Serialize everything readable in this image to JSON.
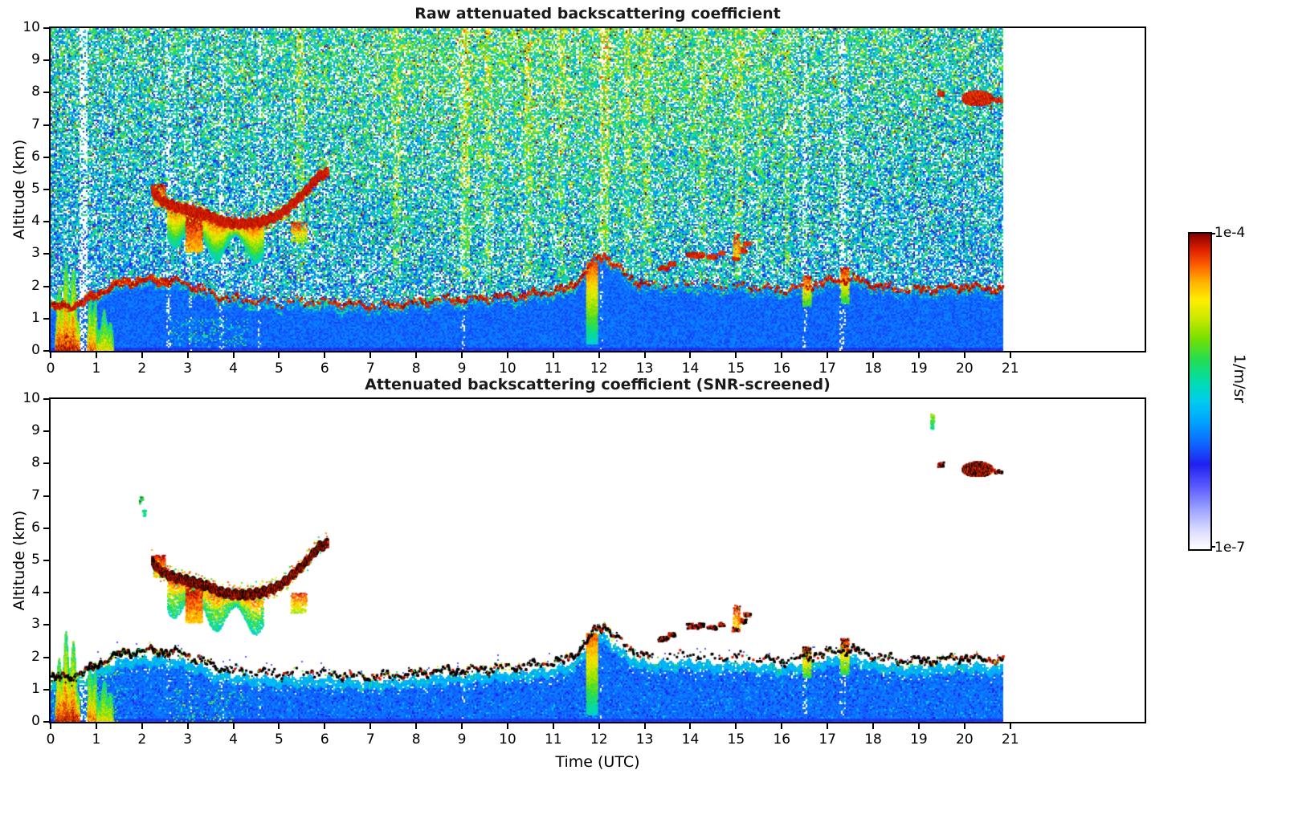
{
  "figure": {
    "panels": [
      {
        "title": "Raw attenuated backscattering coefficient",
        "ylabel": "Altitude (km)",
        "xticks": [
          0,
          1,
          2,
          3,
          4,
          5,
          6,
          7,
          8,
          9,
          10,
          11,
          12,
          13,
          14,
          15,
          16,
          17,
          18,
          19,
          20,
          21
        ],
        "yticks": [
          0,
          1,
          2,
          3,
          4,
          5,
          6,
          7,
          8,
          9,
          10
        ]
      },
      {
        "title": "Attenuated backscattering coefficient (SNR-screened)",
        "ylabel": "Altitude (km)",
        "xlabel": "Time (UTC)",
        "xticks": [
          0,
          1,
          2,
          3,
          4,
          5,
          6,
          7,
          8,
          9,
          10,
          11,
          12,
          13,
          14,
          15,
          16,
          17,
          18,
          19,
          20,
          21
        ],
        "yticks": [
          0,
          1,
          2,
          3,
          4,
          5,
          6,
          7,
          8,
          9,
          10
        ]
      }
    ],
    "colorbar": {
      "top_label": "1e-4",
      "bottom_label": "1e-7",
      "unit": "1/m/sr"
    }
  },
  "chart_data": {
    "type": "heatmap",
    "x_axis": {
      "label": "Time (UTC)",
      "range": [
        0,
        23.94
      ],
      "data_range": [
        0,
        20.83
      ],
      "ticks": [
        0,
        1,
        2,
        3,
        4,
        5,
        6,
        7,
        8,
        9,
        10,
        11,
        12,
        13,
        14,
        15,
        16,
        17,
        18,
        19,
        20,
        21
      ]
    },
    "y_axis": {
      "label": "Altitude (km)",
      "range": [
        0,
        10
      ],
      "ticks": [
        0,
        1,
        2,
        3,
        4,
        5,
        6,
        7,
        8,
        9,
        10
      ]
    },
    "color_axis": {
      "scale": "log",
      "min": 1e-07,
      "max": 0.0001,
      "unit": "1/m/sr"
    },
    "colormap": [
      [
        0,
        "#ffffff"
      ],
      [
        0.06,
        "#dcdcff"
      ],
      [
        0.13,
        "#9aa0ff"
      ],
      [
        0.2,
        "#5a5aff"
      ],
      [
        0.27,
        "#2020f0"
      ],
      [
        0.33,
        "#1060ff"
      ],
      [
        0.4,
        "#00a0ff"
      ],
      [
        0.47,
        "#00ccee"
      ],
      [
        0.53,
        "#00ddb0"
      ],
      [
        0.6,
        "#22dd55"
      ],
      [
        0.67,
        "#77e000"
      ],
      [
        0.73,
        "#c8e800"
      ],
      [
        0.79,
        "#ffee00"
      ],
      [
        0.85,
        "#ffb000"
      ],
      [
        0.9,
        "#ff6000"
      ],
      [
        0.95,
        "#e02000"
      ],
      [
        1,
        "#870000"
      ]
    ],
    "boundary_layer_track": [
      [
        0,
        1.35
      ],
      [
        0.4,
        1.4
      ],
      [
        0.8,
        1.6
      ],
      [
        1.2,
        1.95
      ],
      [
        1.6,
        2.15
      ],
      [
        2,
        2.2
      ],
      [
        2.4,
        2.2
      ],
      [
        2.8,
        2.15
      ],
      [
        3.2,
        1.95
      ],
      [
        3.6,
        1.7
      ],
      [
        4,
        1.6
      ],
      [
        4.5,
        1.55
      ],
      [
        5,
        1.5
      ],
      [
        5.5,
        1.55
      ],
      [
        6,
        1.5
      ],
      [
        6.5,
        1.45
      ],
      [
        7,
        1.4
      ],
      [
        7.5,
        1.45
      ],
      [
        8,
        1.5
      ],
      [
        8.5,
        1.6
      ],
      [
        9,
        1.6
      ],
      [
        9.5,
        1.65
      ],
      [
        10,
        1.7
      ],
      [
        10.5,
        1.75
      ],
      [
        11,
        1.85
      ],
      [
        11.3,
        1.95
      ],
      [
        11.6,
        2.3
      ],
      [
        11.9,
        2.85
      ],
      [
        12.1,
        3.0
      ],
      [
        12.3,
        2.7
      ],
      [
        12.6,
        2.3
      ],
      [
        13,
        2.05
      ],
      [
        13.5,
        2.05
      ],
      [
        14,
        2.1
      ],
      [
        14.5,
        2.0
      ],
      [
        15,
        2.05
      ],
      [
        15.5,
        1.95
      ],
      [
        16,
        1.9
      ],
      [
        16.5,
        2.0
      ],
      [
        17,
        2.15
      ],
      [
        17.5,
        2.25
      ],
      [
        18,
        2.05
      ],
      [
        18.5,
        1.9
      ],
      [
        19,
        1.9
      ],
      [
        19.5,
        1.95
      ],
      [
        20,
        2.0
      ],
      [
        20.4,
        1.95
      ],
      [
        20.83,
        1.9
      ]
    ],
    "cloud_base_track": [
      [
        2.2,
        5.0
      ],
      [
        2.35,
        4.75
      ],
      [
        2.5,
        4.62
      ],
      [
        2.7,
        4.5
      ],
      [
        2.95,
        4.42
      ],
      [
        3.2,
        4.32
      ],
      [
        3.45,
        4.22
      ],
      [
        3.7,
        4.05
      ],
      [
        3.95,
        3.98
      ],
      [
        4.2,
        3.97
      ],
      [
        4.45,
        4.0
      ],
      [
        4.7,
        4.08
      ],
      [
        4.95,
        4.22
      ],
      [
        5.15,
        4.42
      ],
      [
        5.35,
        4.68
      ],
      [
        5.55,
        4.95
      ],
      [
        5.7,
        5.2
      ],
      [
        5.85,
        5.45
      ],
      [
        6.05,
        5.55
      ]
    ],
    "bl_line_segments": [
      [
        0,
        2.6,
        0.95
      ],
      [
        2.6,
        3.3,
        0.6
      ],
      [
        3.3,
        3.9,
        0.45
      ],
      [
        3.9,
        6.2,
        0.22
      ],
      [
        6.2,
        7.2,
        0.35
      ],
      [
        7.2,
        9.8,
        0.45
      ],
      [
        9.8,
        11.3,
        0.5
      ],
      [
        11.3,
        12.45,
        0.75
      ],
      [
        12.45,
        13.2,
        0.3
      ],
      [
        13.2,
        15.5,
        0.12
      ],
      [
        15.5,
        16.3,
        0.3
      ],
      [
        16.3,
        18.2,
        0.55
      ],
      [
        18.2,
        19,
        0.4
      ],
      [
        19,
        20.83,
        0.5
      ]
    ],
    "noise": {
      "seed_raw": 12345,
      "seed_screened": 54321,
      "white_frac": 0.22,
      "base": 0.4,
      "alt_gain": 0.1,
      "day_gain": 0.09,
      "spread": 0.42,
      "hot_frac": 0.025,
      "red_frac": 0.005,
      "low_t0": 2.6,
      "low_t1": 4.3
    },
    "warm_stripes": [
      {
        "t": 5.45,
        "w": 0.09,
        "boost": 0.1
      },
      {
        "t": 7.55,
        "w": 0.08,
        "boost": 0.09
      },
      {
        "t": 9.05,
        "w": 0.1,
        "boost": 0.13
      },
      {
        "t": 9.55,
        "w": 0.07,
        "boost": 0.1
      },
      {
        "t": 10.45,
        "w": 0.08,
        "boost": 0.1
      },
      {
        "t": 11.15,
        "w": 0.07,
        "boost": 0.09
      },
      {
        "t": 12.1,
        "w": 0.1,
        "boost": 0.13
      },
      {
        "t": 12.6,
        "w": 0.07,
        "boost": 0.09
      },
      {
        "t": 13.05,
        "w": 0.08,
        "boost": 0.1
      },
      {
        "t": 14.25,
        "w": 0.07,
        "boost": 0.09
      },
      {
        "t": 15.05,
        "w": 0.08,
        "boost": 0.1
      },
      {
        "t": 15.5,
        "w": 0.06,
        "boost": 0.08
      },
      {
        "t": 16.1,
        "w": 0.06,
        "boost": 0.08
      }
    ],
    "white_stripes": [
      {
        "t": 0.7,
        "w": 0.1,
        "mult": 3.5
      },
      {
        "t": 2.58,
        "w": 0.05,
        "mult": 2.2
      },
      {
        "t": 3.05,
        "w": 0.04,
        "mult": 1.8
      },
      {
        "t": 3.72,
        "w": 0.05,
        "mult": 2.0
      },
      {
        "t": 4.55,
        "w": 0.05,
        "mult": 2.0
      },
      {
        "t": 9.0,
        "w": 0.04,
        "mult": 1.6
      },
      {
        "t": 12.05,
        "w": 0.04,
        "mult": 1.6
      },
      {
        "t": 16.48,
        "w": 0.06,
        "mult": 2.2
      },
      {
        "t": 17.32,
        "w": 0.06,
        "mult": 2.2
      }
    ],
    "features": [
      {
        "type": "plume",
        "panels": "both",
        "t0": 0.1,
        "t1": 0.62,
        "z_min": 1.5,
        "z_max": 2.85,
        "u0": 0.97,
        "u1": 0.6
      },
      {
        "type": "plume",
        "panels": "both",
        "t0": 0.8,
        "t1": 1.0,
        "z_min": 1.2,
        "z_max": 2.2,
        "u0": 0.9,
        "u1": 0.55
      },
      {
        "type": "plume",
        "panels": "both",
        "t0": 1.0,
        "t1": 1.35,
        "z_min": 0.8,
        "z_max": 1.3,
        "u0": 0.78,
        "u1": 0.55
      },
      {
        "type": "vstreak",
        "panels": "both",
        "t0": 2.25,
        "t1": 2.5,
        "z0": 4.5,
        "z1": 5.2,
        "u0": 0.78,
        "u1": 0.98,
        "density": 0.5,
        "black": 0
      },
      {
        "type": "virga",
        "panels": "both",
        "t0": 2.55,
        "t1": 4.65,
        "depth_min": 0.35,
        "depth_max": 1.25
      },
      {
        "type": "vstreak",
        "panels": "both",
        "t0": 2.95,
        "t1": 3.3,
        "z0": 3.1,
        "z1": 4.35,
        "u0": 0.82,
        "u1": 1.0,
        "density": 0.55,
        "black": 0
      },
      {
        "type": "vstreak",
        "panels": "both",
        "t0": 5.25,
        "t1": 5.6,
        "z0": 3.4,
        "z1": 4.0,
        "u0": 0.7,
        "u1": 0.95,
        "density": 0.3,
        "black": 0
      },
      {
        "type": "track",
        "panels": "both",
        "pts_ref": "cloud_base_track",
        "thick": 0.12,
        "u0": 0.92,
        "u1": 1.0,
        "black": 0.5
      },
      {
        "type": "vstreak",
        "panels": "both",
        "t0": 11.72,
        "t1": 11.95,
        "z0": 0.25,
        "z1": 2.75,
        "u0": 0.5,
        "u1": 0.92,
        "density": 0.8,
        "black": 0
      },
      {
        "type": "dash",
        "panels": "both",
        "t0": 13.28,
        "t1": 13.5,
        "z": 2.6,
        "h": 0.07,
        "u": 0.96,
        "black": 0.55
      },
      {
        "type": "dash",
        "panels": "both",
        "t0": 13.5,
        "t1": 13.65,
        "z": 2.73,
        "h": 0.06,
        "u": 0.95,
        "black": 0.55
      },
      {
        "type": "dash",
        "panels": "both",
        "t0": 13.9,
        "t1": 14.28,
        "z": 3.0,
        "h": 0.08,
        "u": 0.96,
        "black": 0.55
      },
      {
        "type": "dash",
        "panels": "both",
        "t0": 14.35,
        "t1": 14.55,
        "z": 2.95,
        "h": 0.06,
        "u": 0.95,
        "black": 0.55
      },
      {
        "type": "dash",
        "panels": "both",
        "t0": 14.6,
        "t1": 14.72,
        "z": 3.05,
        "h": 0.05,
        "u": 0.94,
        "black": 0.5
      },
      {
        "type": "dash",
        "panels": "both",
        "t0": 14.9,
        "t1": 15.05,
        "z": 2.9,
        "h": 0.06,
        "u": 0.95,
        "black": 0.5
      },
      {
        "type": "dash",
        "panels": "both",
        "t0": 15.03,
        "t1": 15.2,
        "z": 3.15,
        "h": 0.07,
        "u": 0.96,
        "black": 0.5
      },
      {
        "type": "dash",
        "panels": "both",
        "t0": 15.15,
        "t1": 15.3,
        "z": 3.35,
        "h": 0.05,
        "u": 0.93,
        "black": 0.5
      },
      {
        "type": "vstreak",
        "panels": "both",
        "t0": 14.93,
        "t1": 15.08,
        "z0": 2.95,
        "z1": 3.65,
        "u0": 0.8,
        "u1": 0.95,
        "density": 0.3,
        "black": 0.3
      },
      {
        "type": "vstreak",
        "panels": "both",
        "t0": 16.45,
        "t1": 16.62,
        "z0": 1.4,
        "z1": 2.35,
        "u0": 0.6,
        "u1": 0.96,
        "density": 0.5,
        "black": 0.4
      },
      {
        "type": "vstreak",
        "panels": "both",
        "t0": 17.28,
        "t1": 17.45,
        "z0": 1.5,
        "z1": 2.6,
        "u0": 0.6,
        "u1": 0.96,
        "density": 0.5,
        "black": 0.4
      },
      {
        "type": "blob",
        "panels": "both",
        "t0": 19.93,
        "t1": 20.6,
        "z": 7.85,
        "hh": 0.23,
        "u0": 0.9,
        "u1": 1.0,
        "black": 0.4
      },
      {
        "type": "dash",
        "panels": "both",
        "t0": 20.63,
        "t1": 20.8,
        "z": 7.8,
        "h": 0.06,
        "u": 0.95,
        "black": 0.5
      },
      {
        "type": "dash",
        "panels": "both",
        "t0": 19.4,
        "t1": 19.52,
        "z": 8.0,
        "h": 0.07,
        "u": 0.96,
        "black": 0.6
      },
      {
        "type": "vstreak",
        "panels": "screened",
        "t0": 19.25,
        "t1": 19.33,
        "z0": 9.1,
        "z1": 9.55,
        "u0": 0.55,
        "u1": 0.7,
        "density": 0.5,
        "black": 0
      },
      {
        "type": "dash",
        "panels": "screened",
        "t0": 1.93,
        "t1": 2.0,
        "z": 6.9,
        "h": 0.1,
        "u": 0.6,
        "black": 0.3
      },
      {
        "type": "dash",
        "panels": "screened",
        "t0": 2.0,
        "t1": 2.06,
        "z": 6.5,
        "h": 0.08,
        "u": 0.55,
        "black": 0
      }
    ]
  }
}
